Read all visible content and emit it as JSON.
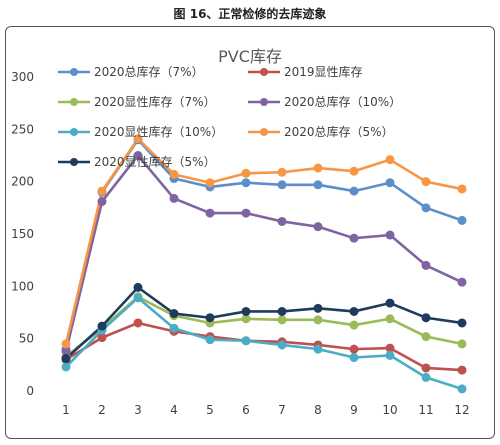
{
  "figure_title": "图 16、正常检修的去库迹象",
  "chart_data": {
    "type": "line",
    "title": "PVC库存",
    "xlabel": "",
    "ylabel": "",
    "ylim": [
      0,
      300
    ],
    "ytick_labels": [
      "0",
      "50",
      "100",
      "150",
      "200",
      "250",
      "300"
    ],
    "grid": false,
    "legend_position": "top",
    "categories": [
      "1",
      "2",
      "3",
      "4",
      "5",
      "6",
      "7",
      "8",
      "9",
      "10",
      "11",
      "12"
    ],
    "series": [
      {
        "name": "2020总库存（7%）",
        "color": "#5b8fcb",
        "values": [
          40,
          190,
          240,
          203,
          195,
          199,
          197,
          197,
          191,
          199,
          175,
          163
        ]
      },
      {
        "name": "2019显性库存",
        "color": "#c0504d",
        "values": [
          30,
          51,
          65,
          57,
          52,
          48,
          47,
          44,
          40,
          41,
          22,
          20
        ]
      },
      {
        "name": "2020显性库存（7%）",
        "color": "#9bbb59",
        "values": [
          33,
          60,
          90,
          72,
          65,
          69,
          68,
          68,
          63,
          69,
          52,
          45
        ]
      },
      {
        "name": "2020总库存（10%）",
        "color": "#8064a2",
        "values": [
          38,
          181,
          225,
          184,
          170,
          170,
          162,
          157,
          146,
          149,
          120,
          104
        ]
      },
      {
        "name": "2020显性库存（10%）",
        "color": "#4bacc6",
        "values": [
          23,
          58,
          89,
          60,
          49,
          48,
          44,
          40,
          32,
          34,
          13,
          2
        ]
      },
      {
        "name": "2020总库存（5%）",
        "color": "#f79646",
        "values": [
          45,
          191,
          241,
          207,
          199,
          208,
          209,
          213,
          210,
          221,
          200,
          193
        ]
      },
      {
        "name": "2020显性库存（5%）",
        "color": "#1f3b5c",
        "values": [
          31,
          62,
          99,
          74,
          70,
          76,
          76,
          79,
          76,
          84,
          70,
          65
        ]
      }
    ]
  }
}
